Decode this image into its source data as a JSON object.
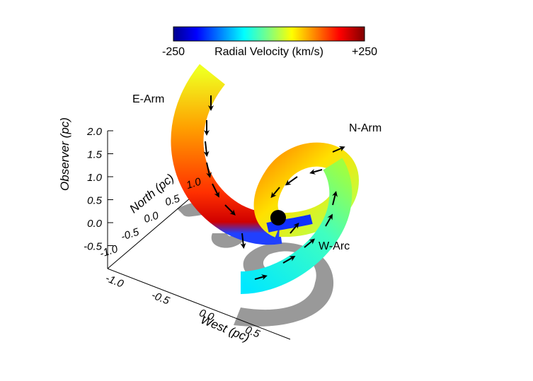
{
  "colorbar": {
    "min_label": "-250",
    "title": "Radial Velocity (km/s)",
    "max_label": "+250"
  },
  "labels": {
    "e_arm": "E-Arm",
    "n_arm": "N-Arm",
    "w_arc": "W-Arc"
  },
  "axes": {
    "observer": {
      "title": "Observer (pc)",
      "ticks": [
        "2.0",
        "1.5",
        "1.0",
        "0.5",
        "0.0",
        "-0.5"
      ]
    },
    "north": {
      "title": "North (pc)",
      "ticks": [
        "-1.0",
        "-0.5",
        "0.0",
        "0.5",
        "1.0"
      ]
    },
    "west": {
      "title": "West (pc)",
      "ticks": [
        "-1.0",
        "-0.5",
        "0.0",
        "0.5"
      ]
    }
  }
}
